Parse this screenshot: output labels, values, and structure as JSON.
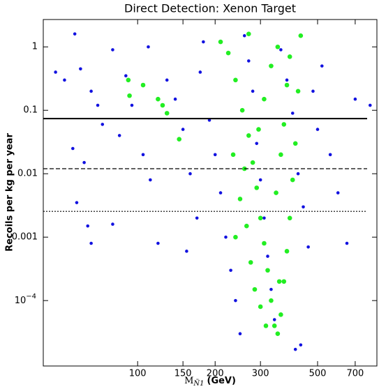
{
  "chart_data": {
    "type": "scatter",
    "title": "Direct Detection: Xenon Target",
    "ylabel": "Recoils per kg per year",
    "xlabel": {
      "symbol": "M",
      "subscript": "Ñ1",
      "unit": "(GeV)"
    },
    "xscale": "log",
    "yscale": "log",
    "xlim": [
      43,
      850
    ],
    "ylim": [
      9.3e-06,
      2.7
    ],
    "xticks": [
      100,
      150,
      200,
      300,
      500,
      700
    ],
    "yticks": [
      1,
      0.1,
      0.01,
      0.001,
      {
        "value": 0.0001,
        "label": "10",
        "exponent": "−4"
      }
    ],
    "hlines": [
      {
        "value": 0.074,
        "style": "solid"
      },
      {
        "value": 0.012,
        "style": "dashed"
      },
      {
        "value": 0.00255,
        "style": "dotted"
      }
    ],
    "series": [
      {
        "color": "#1212e0",
        "size": 2.3,
        "x": [
          57,
          48,
          52,
          60,
          66,
          70,
          73,
          56,
          62,
          58,
          64,
          66,
          80,
          90,
          95,
          85,
          105,
          112,
          80,
          120,
          110,
          130,
          140,
          150,
          160,
          170,
          155,
          180,
          175,
          190,
          200,
          210,
          220,
          230,
          240,
          250,
          260,
          270,
          280,
          290,
          300,
          310,
          320,
          330,
          340,
          360,
          380,
          400,
          420,
          440,
          460,
          480,
          500,
          520,
          560,
          600,
          650,
          700,
          800,
          430,
          410
        ],
        "values": [
          1.6,
          0.4,
          0.3,
          0.45,
          0.2,
          0.12,
          0.06,
          0.025,
          0.015,
          0.0035,
          0.0015,
          0.0008,
          0.9,
          0.35,
          0.12,
          0.04,
          0.02,
          0.008,
          0.0016,
          0.0008,
          1.0,
          0.3,
          0.15,
          0.05,
          0.01,
          0.002,
          0.0006,
          1.2,
          0.4,
          0.07,
          0.02,
          0.005,
          0.001,
          0.0003,
          0.0001,
          3e-05,
          1.5,
          0.6,
          0.2,
          0.03,
          0.008,
          0.002,
          0.0005,
          0.00015,
          5e-05,
          0.9,
          0.3,
          0.09,
          0.01,
          0.003,
          0.0007,
          0.2,
          0.05,
          0.5,
          0.02,
          0.005,
          0.0008,
          0.15,
          0.12,
          2e-05,
          1.7e-05
        ]
      },
      {
        "color": "#22ee22",
        "size": 3.3,
        "x": [
          92,
          93,
          105,
          120,
          125,
          145,
          130,
          210,
          225,
          240,
          255,
          270,
          280,
          290,
          300,
          310,
          320,
          330,
          340,
          350,
          360,
          370,
          380,
          390,
          400,
          410,
          420,
          430,
          350,
          330,
          310,
          295,
          260,
          250,
          240,
          275,
          285,
          300,
          315,
          345,
          360,
          370,
          380,
          390,
          270,
          235,
          265,
          355
        ],
        "values": [
          0.3,
          0.17,
          0.25,
          0.15,
          0.12,
          0.035,
          0.09,
          1.2,
          0.8,
          0.3,
          0.1,
          0.04,
          0.015,
          0.006,
          0.002,
          0.0008,
          0.0003,
          0.0001,
          4e-05,
          3e-05,
          6e-05,
          0.0002,
          0.0006,
          0.002,
          0.008,
          0.03,
          0.2,
          1.5,
          1.0,
          0.5,
          0.15,
          0.05,
          0.012,
          0.004,
          0.001,
          0.0004,
          0.00015,
          8e-05,
          4e-05,
          0.005,
          0.02,
          0.06,
          0.25,
          0.7,
          1.6,
          0.02,
          0.0015,
          0.0002
        ]
      }
    ]
  }
}
